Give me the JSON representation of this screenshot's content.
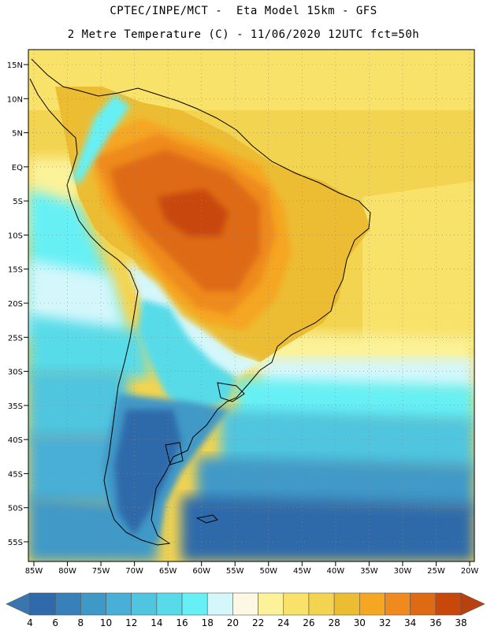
{
  "header": {
    "line1": "CPTEC/INPE/MCT -  Eta Model 15km - GFS",
    "line2": "2 Metre Temperature (C) - 11/06/2020 12UTC fct=50h"
  },
  "map": {
    "lat_labels": [
      "15N",
      "10N",
      "5N",
      "EQ",
      "5S",
      "10S",
      "15S",
      "20S",
      "25S",
      "30S",
      "35S",
      "40S",
      "45S",
      "50S",
      "55S"
    ],
    "lon_labels": [
      "85W",
      "80W",
      "75W",
      "70W",
      "65W",
      "60W",
      "55W",
      "50W",
      "45W",
      "40W",
      "35W",
      "30W",
      "25W",
      "20W"
    ]
  },
  "colorbar": {
    "values": [
      "4",
      "6",
      "8",
      "10",
      "12",
      "14",
      "16",
      "18",
      "20",
      "22",
      "24",
      "26",
      "28",
      "30",
      "32",
      "34",
      "36",
      "38"
    ],
    "colors": [
      "#2f6aaa",
      "#3880ba",
      "#3f99c7",
      "#48afd6",
      "#4fc5df",
      "#58dbe8",
      "#66f0f5",
      "#d4f7fb",
      "#fdf8e3",
      "#fbf29a",
      "#f8e26a",
      "#f3d450",
      "#ecbd33",
      "#f5a623",
      "#ef8a1f",
      "#de6a14",
      "#c8470b"
    ],
    "low_color": "#3a76ad",
    "high_color": "#b8420f"
  }
}
